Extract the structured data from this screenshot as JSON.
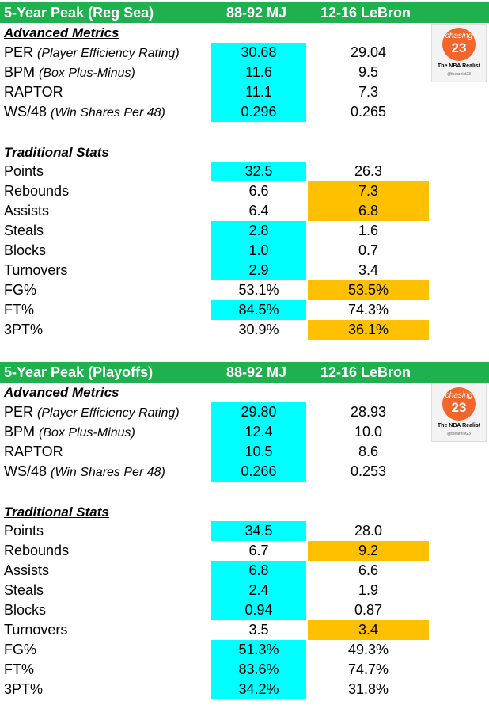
{
  "tables": [
    {
      "header": {
        "title": "5-Year Peak (Reg Sea)",
        "col1": "88-92 MJ",
        "col2": "12-16 LeBron"
      },
      "advanced": {
        "title": "Advanced Metrics",
        "rows": [
          {
            "label": "PER",
            "note": "(Player Efficiency Rating)",
            "v1": "30.68",
            "v2": "29.04",
            "hl": "1"
          },
          {
            "label": "BPM",
            "note": "(Box Plus-Minus)",
            "v1": "11.6",
            "v2": "9.5",
            "hl": "1"
          },
          {
            "label": "RAPTOR",
            "note": "",
            "v1": "11.1",
            "v2": "7.3",
            "hl": "1"
          },
          {
            "label": "WS/48",
            "note": "(Win Shares Per 48)",
            "v1": "0.296",
            "v2": "0.265",
            "hl": "1"
          }
        ]
      },
      "traditional": {
        "title": "Traditional Stats",
        "rows": [
          {
            "label": "Points",
            "v1": "32.5",
            "v2": "26.3",
            "hl": "1"
          },
          {
            "label": "Rebounds",
            "v1": "6.6",
            "v2": "7.3",
            "hl": "2"
          },
          {
            "label": "Assists",
            "v1": "6.4",
            "v2": "6.8",
            "hl": "2"
          },
          {
            "label": "Steals",
            "v1": "2.8",
            "v2": "1.6",
            "hl": "1"
          },
          {
            "label": "Blocks",
            "v1": "1.0",
            "v2": "0.7",
            "hl": "1"
          },
          {
            "label": "Turnovers",
            "v1": "2.9",
            "v2": "3.4",
            "hl": "1"
          },
          {
            "label": "FG%",
            "v1": "53.1%",
            "v2": "53.5%",
            "hl": "2"
          },
          {
            "label": "FT%",
            "v1": "84.5%",
            "v2": "74.3%",
            "hl": "1"
          },
          {
            "label": "3PT%",
            "v1": "30.9%",
            "v2": "36.1%",
            "hl": "2"
          }
        ]
      }
    },
    {
      "header": {
        "title": "5-Year Peak (Playoffs)",
        "col1": "88-92 MJ",
        "col2": "12-16 LeBron"
      },
      "advanced": {
        "title": "Advanced Metrics",
        "rows": [
          {
            "label": "PER",
            "note": "(Player Efficiency Rating)",
            "v1": "29.80",
            "v2": "28.93",
            "hl": "1"
          },
          {
            "label": "BPM",
            "note": "(Box Plus-Minus)",
            "v1": "12.4",
            "v2": "10.0",
            "hl": "1"
          },
          {
            "label": "RAPTOR",
            "note": "",
            "v1": "10.5",
            "v2": "8.6",
            "hl": "1"
          },
          {
            "label": "WS/48",
            "note": "(Win Shares Per 48)",
            "v1": "0.266",
            "v2": "0.253",
            "hl": "1"
          }
        ]
      },
      "traditional": {
        "title": "Traditional Stats",
        "rows": [
          {
            "label": "Points",
            "v1": "34.5",
            "v2": "28.0",
            "hl": "1"
          },
          {
            "label": "Rebounds",
            "v1": "6.7",
            "v2": "9.2",
            "hl": "2"
          },
          {
            "label": "Assists",
            "v1": "6.8",
            "v2": "6.6",
            "hl": "1"
          },
          {
            "label": "Steals",
            "v1": "2.4",
            "v2": "1.9",
            "hl": "1"
          },
          {
            "label": "Blocks",
            "v1": "0.94",
            "v2": "0.87",
            "hl": "1"
          },
          {
            "label": "Turnovers",
            "v1": "3.5",
            "v2": "3.4",
            "hl": "2"
          },
          {
            "label": "FG%",
            "v1": "51.3%",
            "v2": "49.3%",
            "hl": "1"
          },
          {
            "label": "FT%",
            "v1": "83.6%",
            "v2": "74.7%",
            "hl": "1"
          },
          {
            "label": "3PT%",
            "v1": "34.2%",
            "v2": "31.8%",
            "hl": "1"
          }
        ]
      }
    }
  ],
  "logo": {
    "line1": "chasing",
    "line2": "23",
    "line3": "The NBA Realist",
    "line4": "@theareist23"
  },
  "colors": {
    "header": "#1fb14d",
    "mj_highlight": "#00ffff",
    "lebron_highlight": "#ffc000"
  }
}
